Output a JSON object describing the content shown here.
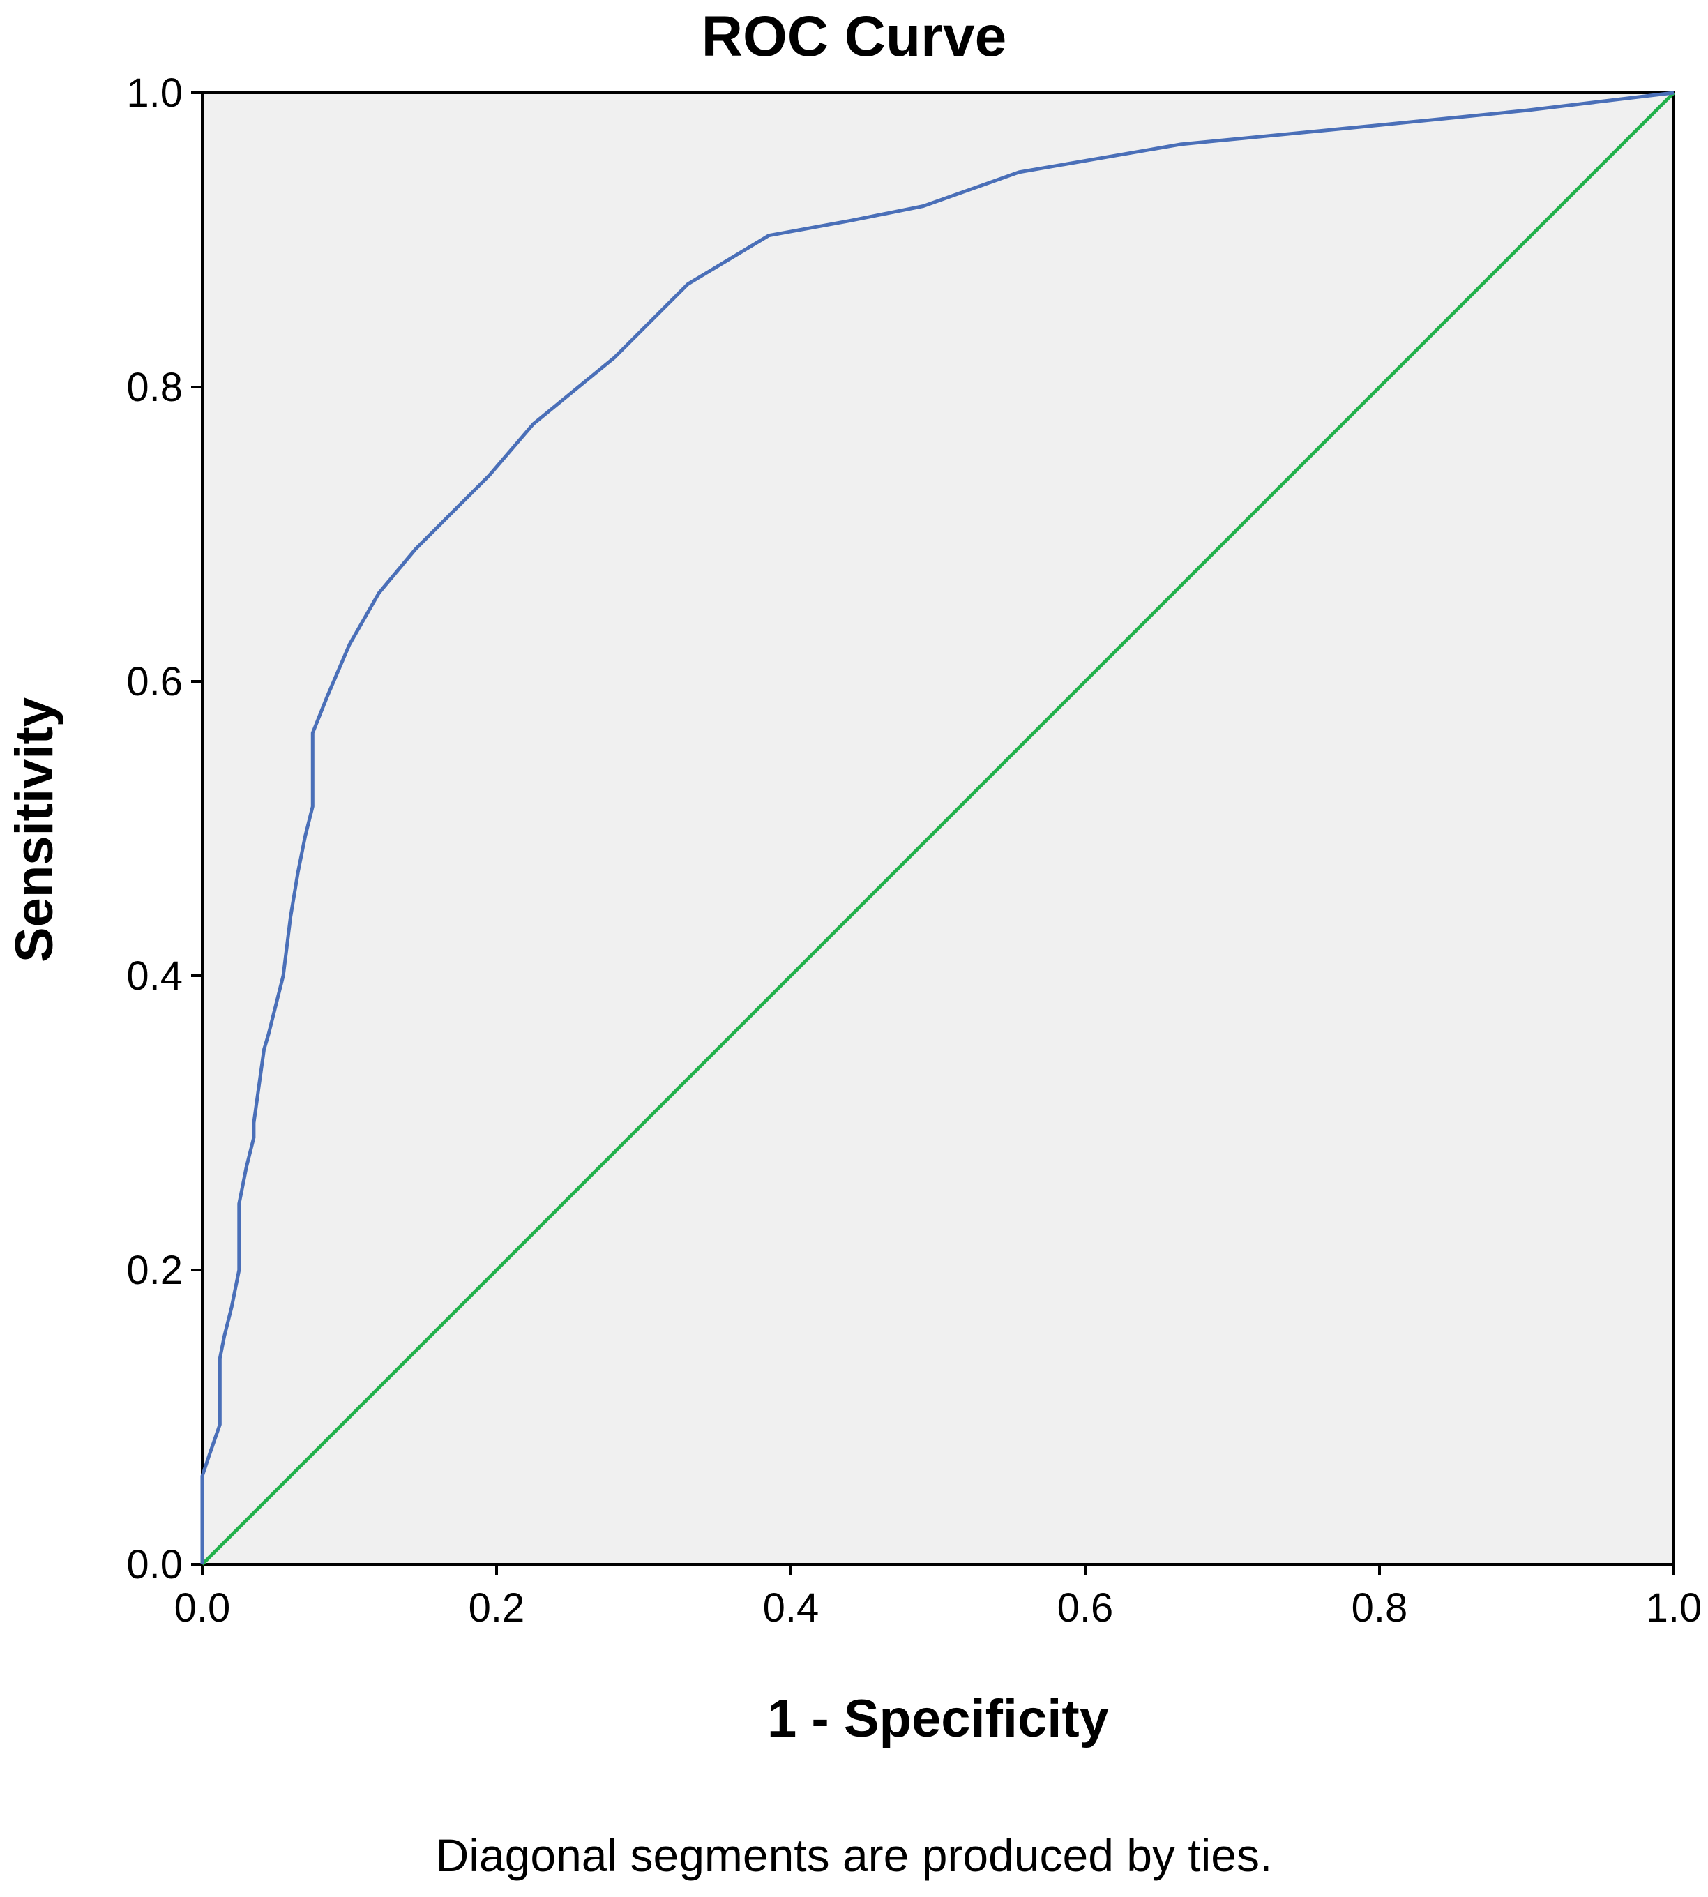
{
  "chart_data": {
    "type": "line",
    "title": "ROC Curve",
    "xlabel": "1 - Specificity",
    "ylabel": "Sensitivity",
    "footnote": "Diagonal segments are produced by ties.",
    "xlim": [
      0,
      1
    ],
    "ylim": [
      0,
      1
    ],
    "x_ticks": [
      "0.0",
      "0.2",
      "0.4",
      "0.6",
      "0.8",
      "1.0"
    ],
    "y_ticks": [
      "0.0",
      "0.2",
      "0.4",
      "0.6",
      "0.8",
      "1.0"
    ],
    "grid": false,
    "plot_background": "#f0f0f0",
    "series": [
      {
        "color": "#4a6fb8",
        "x": [
          0.0,
          0.0,
          0.005,
          0.012,
          0.012,
          0.015,
          0.02,
          0.025,
          0.025,
          0.03,
          0.035,
          0.035,
          0.042,
          0.045,
          0.05,
          0.055,
          0.06,
          0.065,
          0.07,
          0.075,
          0.075,
          0.085,
          0.1,
          0.12,
          0.145,
          0.17,
          0.195,
          0.225,
          0.28,
          0.33,
          0.385,
          0.44,
          0.49,
          0.555,
          0.665,
          0.8,
          0.9,
          1.0
        ],
        "y": [
          0.0,
          0.06,
          0.075,
          0.095,
          0.14,
          0.155,
          0.175,
          0.2,
          0.245,
          0.27,
          0.29,
          0.3,
          0.35,
          0.36,
          0.38,
          0.4,
          0.44,
          0.47,
          0.495,
          0.515,
          0.565,
          0.59,
          0.625,
          0.66,
          0.69,
          0.715,
          0.74,
          0.775,
          0.82,
          0.87,
          0.903,
          0.913,
          0.923,
          0.946,
          0.965,
          0.978,
          0.988,
          1.0
        ]
      },
      {
        "color": "#22b14c",
        "x": [
          0.0,
          1.0
        ],
        "y": [
          0.0,
          1.0
        ]
      }
    ]
  }
}
